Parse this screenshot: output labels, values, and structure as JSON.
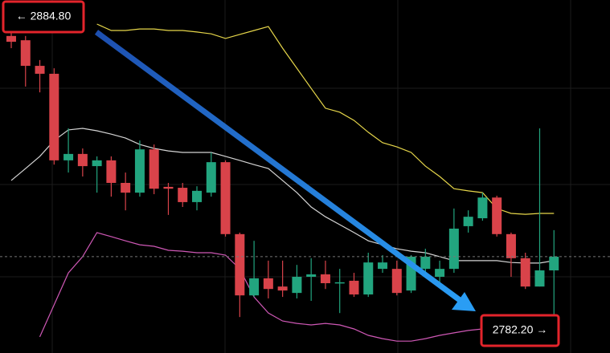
{
  "chart_data": {
    "type": "candlestick",
    "ylim": [
      2774.3,
      2890.1
    ],
    "up_color": "#22a57f",
    "down_color": "#d9434a",
    "open": [
      2878.3,
      2876.9,
      2868.5,
      2865.9,
      2837.5,
      2839.6,
      2835.6,
      2837.5,
      2830.1,
      2826.9,
      2841.1,
      2828.8,
      2828.5,
      2823.8,
      2826.9,
      2836.9,
      2813.3,
      2793.2,
      2798.8,
      2796.1,
      2794.0,
      2799.3,
      2800.1,
      2797.2,
      2798.0,
      2793.5,
      2801.9,
      2801.9,
      2794.8,
      2801.9,
      2799.3,
      2801.9,
      2815.9,
      2818.5,
      2825.3,
      2813.3,
      2805.4,
      2796.1,
      2801.4
    ],
    "high": [
      2884.8,
      2878.3,
      2870.4,
      2867.7,
      2848.0,
      2841.4,
      2838.8,
      2838.8,
      2833.5,
      2844.0,
      2842.7,
      2830.1,
      2830.1,
      2829.0,
      2840.1,
      2837.5,
      2813.8,
      2811.1,
      2804.6,
      2804.6,
      2803.2,
      2805.4,
      2804.6,
      2801.9,
      2800.6,
      2807.2,
      2806.4,
      2804.6,
      2806.4,
      2808.5,
      2804.6,
      2821.7,
      2821.1,
      2826.9,
      2825.9,
      2813.8,
      2807.2,
      2848.0,
      2814.6
    ],
    "low": [
      2874.3,
      2861.7,
      2859.8,
      2836.1,
      2833.5,
      2832.2,
      2826.9,
      2825.6,
      2821.1,
      2825.6,
      2826.4,
      2819.6,
      2822.2,
      2821.1,
      2825.6,
      2812.5,
      2786.1,
      2792.7,
      2792.2,
      2792.7,
      2792.2,
      2791.4,
      2795.3,
      2787.4,
      2792.7,
      2792.7,
      2800.6,
      2793.2,
      2794.0,
      2800.6,
      2797.5,
      2800.6,
      2813.8,
      2817.7,
      2812.5,
      2799.3,
      2795.3,
      2796.1,
      2782.2
    ],
    "close": [
      2876.4,
      2868.5,
      2865.9,
      2837.5,
      2839.6,
      2835.6,
      2837.5,
      2830.1,
      2826.9,
      2841.1,
      2828.2,
      2828.2,
      2823.8,
      2827.5,
      2836.9,
      2813.3,
      2793.2,
      2798.8,
      2795.3,
      2794.8,
      2799.3,
      2800.1,
      2797.2,
      2797.5,
      2793.5,
      2804.0,
      2804.0,
      2794.0,
      2805.9,
      2805.9,
      2801.9,
      2815.1,
      2819.0,
      2825.3,
      2813.3,
      2805.4,
      2796.1,
      2801.4,
      2805.9
    ],
    "bands": [
      {
        "color": "#e6d64a",
        "values": [
          null,
          null,
          null,
          null,
          null,
          null,
          2882.2,
          2880.1,
          2880.1,
          2880.6,
          2880.6,
          2880.1,
          2880.1,
          2879.6,
          2879.0,
          2877.5,
          2878.8,
          2880.1,
          2881.4,
          2874.3,
          2867.7,
          2861.1,
          2854.6,
          2853.3,
          2850.6,
          2846.7,
          2843.3,
          2841.9,
          2840.1,
          2835.6,
          2832.2,
          2828.2,
          2827.5,
          2826.9,
          2821.7,
          2820.1,
          2819.8,
          2820.1,
          2820.1
        ]
      },
      {
        "color": "#d4d4d4",
        "values": [
          2830.9,
          2834.8,
          2838.8,
          2844.0,
          2847.5,
          2848.0,
          2847.2,
          2846.1,
          2844.8,
          2842.7,
          2841.4,
          2840.6,
          2840.1,
          2840.1,
          2840.1,
          2838.8,
          2837.5,
          2836.1,
          2834.8,
          2830.9,
          2826.9,
          2822.2,
          2819.0,
          2816.4,
          2813.8,
          2811.1,
          2809.8,
          2808.5,
          2807.7,
          2807.2,
          2805.9,
          2804.6,
          2804.6,
          2804.6,
          2804.6,
          2804.0,
          2803.8,
          2803.8,
          2804.6
        ]
      },
      {
        "color": "#cf58b6",
        "values": [
          null,
          null,
          2779.6,
          2790.1,
          2800.6,
          2805.9,
          2813.8,
          2812.5,
          2811.1,
          2809.8,
          2809.3,
          2808.0,
          2807.7,
          2807.2,
          2807.2,
          2806.4,
          2801.9,
          2792.7,
          2787.4,
          2784.8,
          2784.0,
          2783.5,
          2784.0,
          2783.5,
          2782.2,
          2780.1,
          2779.0,
          2778.2,
          2778.2,
          2779.0,
          2780.1,
          2780.9,
          2781.7,
          2782.2,
          2783.5,
          2784.8,
          null,
          null,
          null
        ]
      }
    ],
    "annotations": [
      "← 2884.80",
      "2782.20 →"
    ]
  }
}
